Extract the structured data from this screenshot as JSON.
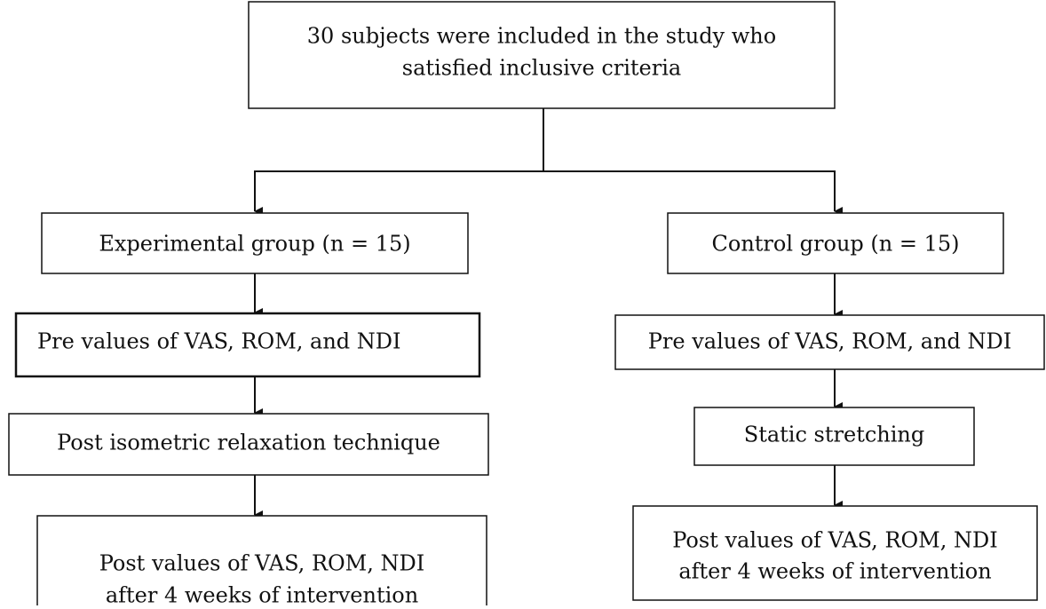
{
  "nodes": [
    {
      "lines": [
        "30 subjects were included in the study who",
        "satisfied inclusive criteria"
      ]
    },
    {
      "lines": [
        "Experimental group (n  =  15)"
      ]
    },
    {
      "lines": [
        "Control group (n = 15)"
      ]
    },
    {
      "lines": [
        "Pre values of VAS, ROM, and NDI"
      ]
    },
    {
      "lines": [
        "Pre values of VAS, ROM, and NDI"
      ]
    },
    {
      "lines": [
        "Post isometric relaxation technique"
      ]
    },
    {
      "lines": [
        "Static stretching"
      ]
    },
    {
      "lines": [
        "Post values of VAS, ROM, NDI",
        "after 4 weeks of intervention"
      ]
    },
    {
      "lines": [
        "Post values of VAS, ROM, NDI",
        "after 4 weeks of intervention"
      ]
    }
  ]
}
